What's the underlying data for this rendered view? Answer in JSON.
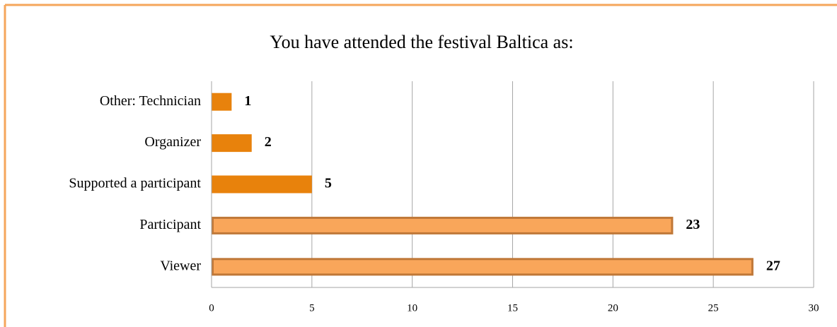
{
  "chart_data": {
    "type": "barh",
    "title": "You have attended the festival Baltica as:",
    "categories": [
      "Other: Technician",
      "Organizer",
      "Supported a participant",
      "Participant",
      "Viewer"
    ],
    "values": [
      1,
      2,
      5,
      23,
      27
    ],
    "colors": [
      "#e8820c",
      "#e8820c",
      "#e8820c",
      "#f9a65a",
      "#f9a65a"
    ],
    "edge_colors": [
      "#e8820c",
      "#e8820c",
      "#e8820c",
      "#c07838",
      "#c07838"
    ],
    "xlim": [
      0,
      30
    ],
    "xticks": [
      0,
      5,
      10,
      15,
      20,
      25,
      30
    ],
    "grid": true
  }
}
